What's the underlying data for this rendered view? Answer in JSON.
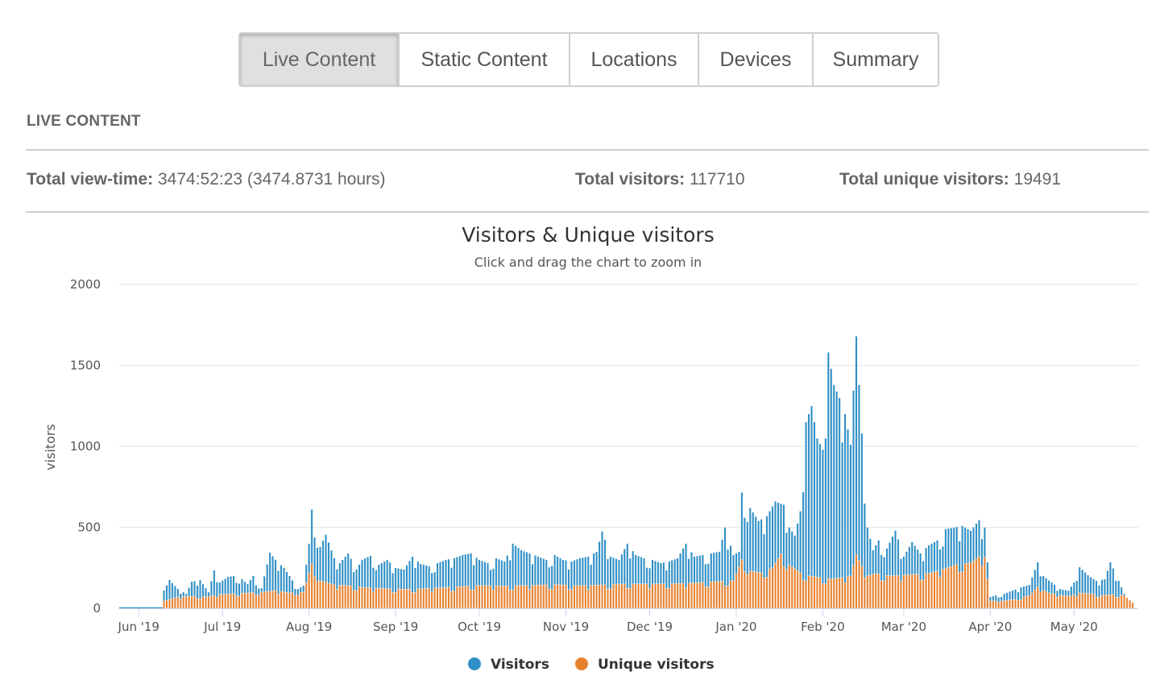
{
  "tabs": [
    {
      "label": "Live Content",
      "active": true
    },
    {
      "label": "Static Content",
      "active": false
    },
    {
      "label": "Locations",
      "active": false
    },
    {
      "label": "Devices",
      "active": false
    },
    {
      "label": "Summary",
      "active": false
    }
  ],
  "section_title": "LIVE CONTENT",
  "stats": {
    "view_time_label": "Total view-time:",
    "view_time_value": "3474:52:23 (3474.8731 hours)",
    "visitors_label": "Total visitors:",
    "visitors_value": "117710",
    "unique_label": "Total unique visitors:",
    "unique_value": "19491"
  },
  "colors": {
    "visitors": "#2f8fc6",
    "unique": "#e8812e",
    "grid": "#e6e6e6",
    "axis_text": "#555555",
    "active_tab_bg": "#e0e0e0",
    "border": "#cfcfcf"
  },
  "chart_data": {
    "type": "bar",
    "title": "Visitors & Unique visitors",
    "subtitle": "Click and drag the chart to zoom in",
    "xlabel": "",
    "ylabel": "visitors",
    "ylim": [
      0,
      2000
    ],
    "yticks": [
      0,
      500,
      1000,
      1500,
      2000
    ],
    "grid": true,
    "legend_position": "bottom-center",
    "x_range": [
      "2019-05-25",
      "2020-05-24"
    ],
    "xtick_labels": [
      {
        "date": "2019-06-01",
        "label": "Jun '19"
      },
      {
        "date": "2019-07-01",
        "label": "Jul '19"
      },
      {
        "date": "2019-08-01",
        "label": "Aug '19"
      },
      {
        "date": "2019-09-01",
        "label": "Sep '19"
      },
      {
        "date": "2019-10-01",
        "label": "Oct '19"
      },
      {
        "date": "2019-11-01",
        "label": "Nov '19"
      },
      {
        "date": "2019-12-01",
        "label": "Dec '19"
      },
      {
        "date": "2020-01-01",
        "label": "Jan '20"
      },
      {
        "date": "2020-02-01",
        "label": "Feb '20"
      },
      {
        "date": "2020-03-01",
        "label": "Mar '20"
      },
      {
        "date": "2020-04-01",
        "label": "Apr '20"
      },
      {
        "date": "2020-05-01",
        "label": "May '20"
      }
    ],
    "series": [
      {
        "name": "Visitors",
        "color": "#2f8fc6",
        "points": [
          [
            "2019-06-10",
            110
          ],
          [
            "2019-06-12",
            175
          ],
          [
            "2019-06-15",
            120
          ],
          [
            "2019-06-18",
            90
          ],
          [
            "2019-06-20",
            165
          ],
          [
            "2019-06-23",
            175
          ],
          [
            "2019-06-26",
            100
          ],
          [
            "2019-06-28",
            235
          ],
          [
            "2019-06-30",
            160
          ],
          [
            "2019-07-03",
            195
          ],
          [
            "2019-07-05",
            200
          ],
          [
            "2019-07-08",
            180
          ],
          [
            "2019-07-10",
            150
          ],
          [
            "2019-07-12",
            200
          ],
          [
            "2019-07-15",
            125
          ],
          [
            "2019-07-18",
            345
          ],
          [
            "2019-07-20",
            300
          ],
          [
            "2019-07-23",
            250
          ],
          [
            "2019-07-25",
            200
          ],
          [
            "2019-07-28",
            120
          ],
          [
            "2019-07-30",
            140
          ],
          [
            "2019-08-01",
            400
          ],
          [
            "2019-08-02",
            610
          ],
          [
            "2019-08-05",
            380
          ],
          [
            "2019-08-07",
            455
          ],
          [
            "2019-08-10",
            310
          ],
          [
            "2019-08-12",
            280
          ],
          [
            "2019-08-15",
            340
          ],
          [
            "2019-08-18",
            240
          ],
          [
            "2019-08-20",
            300
          ],
          [
            "2019-08-23",
            325
          ],
          [
            "2019-08-26",
            270
          ],
          [
            "2019-08-29",
            300
          ],
          [
            "2019-09-01",
            250
          ],
          [
            "2019-09-04",
            240
          ],
          [
            "2019-09-07",
            320
          ],
          [
            "2019-09-10",
            275
          ],
          [
            "2019-09-13",
            260
          ],
          [
            "2019-09-16",
            280
          ],
          [
            "2019-09-19",
            300
          ],
          [
            "2019-09-22",
            310
          ],
          [
            "2019-09-25",
            330
          ],
          [
            "2019-09-28",
            340
          ],
          [
            "2019-10-01",
            300
          ],
          [
            "2019-10-04",
            280
          ],
          [
            "2019-10-07",
            310
          ],
          [
            "2019-10-10",
            290
          ],
          [
            "2019-10-13",
            400
          ],
          [
            "2019-10-16",
            360
          ],
          [
            "2019-10-19",
            340
          ],
          [
            "2019-10-22",
            320
          ],
          [
            "2019-10-25",
            300
          ],
          [
            "2019-10-28",
            330
          ],
          [
            "2019-10-31",
            300
          ],
          [
            "2019-11-03",
            290
          ],
          [
            "2019-11-06",
            310
          ],
          [
            "2019-11-09",
            320
          ],
          [
            "2019-11-12",
            350
          ],
          [
            "2019-11-14",
            475
          ],
          [
            "2019-11-17",
            320
          ],
          [
            "2019-11-20",
            300
          ],
          [
            "2019-11-23",
            400
          ],
          [
            "2019-11-26",
            330
          ],
          [
            "2019-11-29",
            310
          ],
          [
            "2019-12-02",
            300
          ],
          [
            "2019-12-05",
            280
          ],
          [
            "2019-12-08",
            290
          ],
          [
            "2019-12-11",
            310
          ],
          [
            "2019-12-14",
            400
          ],
          [
            "2019-12-17",
            320
          ],
          [
            "2019-12-20",
            330
          ],
          [
            "2019-12-23",
            340
          ],
          [
            "2019-12-26",
            350
          ],
          [
            "2019-12-28",
            500
          ],
          [
            "2019-12-31",
            330
          ],
          [
            "2020-01-02",
            350
          ],
          [
            "2020-01-03",
            715
          ],
          [
            "2020-01-06",
            620
          ],
          [
            "2020-01-09",
            540
          ],
          [
            "2020-01-12",
            570
          ],
          [
            "2020-01-15",
            660
          ],
          [
            "2020-01-18",
            640
          ],
          [
            "2020-01-20",
            500
          ],
          [
            "2020-01-22",
            450
          ],
          [
            "2020-01-24",
            600
          ],
          [
            "2020-01-26",
            1150
          ],
          [
            "2020-01-28",
            1250
          ],
          [
            "2020-01-30",
            1050
          ],
          [
            "2020-02-01",
            980
          ],
          [
            "2020-02-03",
            1580
          ],
          [
            "2020-02-05",
            1380
          ],
          [
            "2020-02-07",
            1300
          ],
          [
            "2020-02-09",
            1200
          ],
          [
            "2020-02-11",
            1010
          ],
          [
            "2020-02-13",
            1680
          ],
          [
            "2020-02-15",
            1080
          ],
          [
            "2020-02-17",
            500
          ],
          [
            "2020-02-19",
            360
          ],
          [
            "2020-02-21",
            420
          ],
          [
            "2020-02-24",
            370
          ],
          [
            "2020-02-27",
            480
          ],
          [
            "2020-03-01",
            320
          ],
          [
            "2020-03-04",
            410
          ],
          [
            "2020-03-07",
            340
          ],
          [
            "2020-03-10",
            390
          ],
          [
            "2020-03-13",
            420
          ],
          [
            "2020-03-16",
            490
          ],
          [
            "2020-03-19",
            500
          ],
          [
            "2020-03-22",
            510
          ],
          [
            "2020-03-25",
            480
          ],
          [
            "2020-03-28",
            545
          ],
          [
            "2020-03-30",
            500
          ],
          [
            "2020-04-01",
            70
          ],
          [
            "2020-04-03",
            80
          ],
          [
            "2020-04-06",
            90
          ],
          [
            "2020-04-09",
            110
          ],
          [
            "2020-04-12",
            130
          ],
          [
            "2020-04-15",
            145
          ],
          [
            "2020-04-18",
            285
          ],
          [
            "2020-04-20",
            200
          ],
          [
            "2020-04-23",
            160
          ],
          [
            "2020-04-26",
            120
          ],
          [
            "2020-04-29",
            110
          ],
          [
            "2020-05-01",
            160
          ],
          [
            "2020-05-03",
            255
          ],
          [
            "2020-05-06",
            205
          ],
          [
            "2020-05-09",
            170
          ],
          [
            "2020-05-12",
            180
          ],
          [
            "2020-05-14",
            285
          ],
          [
            "2020-05-17",
            170
          ],
          [
            "2020-05-19",
            90
          ]
        ]
      },
      {
        "name": "Unique visitors",
        "color": "#e8812e",
        "points": [
          [
            "2019-06-10",
            45
          ],
          [
            "2019-06-15",
            70
          ],
          [
            "2019-06-20",
            75
          ],
          [
            "2019-06-25",
            70
          ],
          [
            "2019-06-30",
            85
          ],
          [
            "2019-07-05",
            90
          ],
          [
            "2019-07-10",
            95
          ],
          [
            "2019-07-15",
            100
          ],
          [
            "2019-07-20",
            110
          ],
          [
            "2019-07-25",
            95
          ],
          [
            "2019-07-30",
            100
          ],
          [
            "2019-08-02",
            275
          ],
          [
            "2019-08-05",
            170
          ],
          [
            "2019-08-10",
            145
          ],
          [
            "2019-08-15",
            140
          ],
          [
            "2019-08-20",
            130
          ],
          [
            "2019-08-25",
            125
          ],
          [
            "2019-08-30",
            120
          ],
          [
            "2019-09-05",
            118
          ],
          [
            "2019-09-10",
            120
          ],
          [
            "2019-09-15",
            125
          ],
          [
            "2019-09-20",
            130
          ],
          [
            "2019-09-25",
            135
          ],
          [
            "2019-09-30",
            140
          ],
          [
            "2019-10-05",
            140
          ],
          [
            "2019-10-10",
            138
          ],
          [
            "2019-10-15",
            140
          ],
          [
            "2019-10-20",
            142
          ],
          [
            "2019-10-25",
            145
          ],
          [
            "2019-10-30",
            145
          ],
          [
            "2019-11-05",
            140
          ],
          [
            "2019-11-10",
            142
          ],
          [
            "2019-11-15",
            145
          ],
          [
            "2019-11-20",
            150
          ],
          [
            "2019-11-25",
            150
          ],
          [
            "2019-11-30",
            150
          ],
          [
            "2019-12-05",
            150
          ],
          [
            "2019-12-10",
            152
          ],
          [
            "2019-12-15",
            155
          ],
          [
            "2019-12-20",
            160
          ],
          [
            "2019-12-25",
            165
          ],
          [
            "2019-12-31",
            170
          ],
          [
            "2020-01-03",
            300
          ],
          [
            "2020-01-06",
            230
          ],
          [
            "2020-01-10",
            220
          ],
          [
            "2020-01-14",
            250
          ],
          [
            "2020-01-17",
            335
          ],
          [
            "2020-01-20",
            270
          ],
          [
            "2020-01-24",
            220
          ],
          [
            "2020-01-27",
            200
          ],
          [
            "2020-01-31",
            190
          ],
          [
            "2020-02-04",
            180
          ],
          [
            "2020-02-08",
            190
          ],
          [
            "2020-02-11",
            200
          ],
          [
            "2020-02-13",
            330
          ],
          [
            "2020-02-15",
            260
          ],
          [
            "2020-02-17",
            200
          ],
          [
            "2020-02-20",
            215
          ],
          [
            "2020-02-25",
            200
          ],
          [
            "2020-03-01",
            205
          ],
          [
            "2020-03-05",
            210
          ],
          [
            "2020-03-10",
            215
          ],
          [
            "2020-03-15",
            240
          ],
          [
            "2020-03-20",
            270
          ],
          [
            "2020-03-25",
            280
          ],
          [
            "2020-03-28",
            320
          ],
          [
            "2020-03-30",
            315
          ],
          [
            "2020-04-01",
            45
          ],
          [
            "2020-04-05",
            45
          ],
          [
            "2020-04-10",
            55
          ],
          [
            "2020-04-15",
            80
          ],
          [
            "2020-04-18",
            130
          ],
          [
            "2020-04-22",
            95
          ],
          [
            "2020-04-26",
            80
          ],
          [
            "2020-04-30",
            75
          ],
          [
            "2020-05-03",
            95
          ],
          [
            "2020-05-07",
            90
          ],
          [
            "2020-05-11",
            80
          ],
          [
            "2020-05-15",
            85
          ],
          [
            "2020-05-19",
            80
          ],
          [
            "2020-05-22",
            35
          ]
        ]
      }
    ]
  }
}
